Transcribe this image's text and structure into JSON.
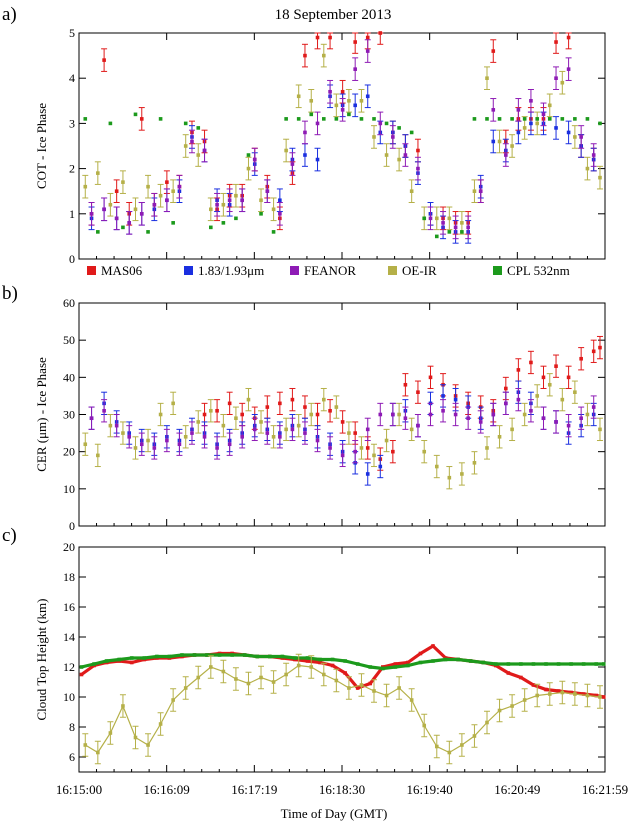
{
  "figure": {
    "title": "18 September 2013",
    "xlabel": "Time of Day (GMT)",
    "xticks": [
      "16:15:00",
      "16:16:09",
      "16:17:19",
      "16:18:30",
      "16:19:40",
      "16:20:49",
      "16:21:59"
    ],
    "legend": [
      {
        "name": "MAS06",
        "color": "#e01a1a"
      },
      {
        "name": "1.83/1.93μm",
        "color": "#1a2fe0"
      },
      {
        "name": "FEANOR",
        "color": "#8e1bb5"
      },
      {
        "name": "OE-IR",
        "color": "#b5b048"
      },
      {
        "name": "CPL 532nm",
        "color": "#1c9a1c"
      }
    ]
  },
  "chart_data": [
    {
      "panel_label": "a)",
      "type": "scatter",
      "ylabel": "COT - Ice Phase",
      "ylim": [
        0,
        5
      ],
      "yticks": [
        0,
        1,
        2,
        3,
        4,
        5
      ],
      "xlim": [
        0,
        419
      ],
      "series": [
        {
          "name": "MAS06",
          "x": [
            10,
            20,
            30,
            40,
            50,
            60,
            70,
            80,
            90,
            100,
            110,
            120,
            130,
            140,
            150,
            160,
            170,
            180,
            190,
            200,
            210,
            220,
            230,
            240,
            250,
            260,
            270,
            280,
            290,
            300,
            310,
            320,
            330,
            340,
            350,
            360,
            370,
            380,
            390,
            400,
            410
          ],
          "values": [
            1.0,
            4.4,
            1.5,
            1.0,
            3.1,
            1.2,
            1.7,
            1.6,
            2.8,
            2.6,
            1.1,
            1.4,
            1.4,
            2.2,
            1.6,
            0.9,
            1.9,
            4.5,
            4.9,
            4.9,
            3.7,
            4.8,
            4.9,
            5.0,
            2.8,
            2.5,
            2.4,
            1.0,
            0.9,
            0.8,
            0.8,
            1.5,
            4.6,
            2.6,
            3.1,
            3.1,
            3.1,
            4.8,
            4.9,
            2.5,
            2.2
          ]
        },
        {
          "name": "1.83/1.93μm",
          "x": [
            10,
            20,
            30,
            40,
            50,
            60,
            70,
            80,
            90,
            100,
            110,
            120,
            130,
            140,
            150,
            160,
            170,
            180,
            190,
            200,
            210,
            220,
            230,
            240,
            250,
            260,
            270,
            280,
            290,
            300,
            310,
            320,
            330,
            340,
            350,
            360,
            370,
            380,
            390,
            400,
            410
          ],
          "values": [
            0.9,
            1.1,
            0.9,
            0.8,
            1.0,
            1.1,
            1.3,
            1.5,
            2.7,
            2.4,
            1.3,
            1.2,
            1.3,
            2.1,
            1.5,
            1.3,
            2.2,
            2.3,
            2.2,
            3.6,
            3.4,
            3.4,
            3.6,
            2.8,
            2.8,
            2.5,
            1.9,
            1.0,
            0.7,
            0.6,
            0.6,
            1.6,
            2.6,
            2.4,
            2.8,
            3.0,
            3.0,
            2.9,
            2.8,
            2.5,
            2.2
          ]
        },
        {
          "name": "FEANOR",
          "x": [
            10,
            20,
            30,
            40,
            50,
            60,
            70,
            80,
            90,
            100,
            110,
            120,
            130,
            140,
            150,
            160,
            170,
            180,
            190,
            200,
            210,
            220,
            230,
            240,
            250,
            260,
            270,
            280,
            290,
            300,
            310,
            320,
            330,
            340,
            350,
            360,
            370,
            380,
            390,
            400,
            410
          ],
          "values": [
            1.0,
            1.1,
            0.9,
            0.8,
            1.0,
            1.2,
            1.3,
            1.6,
            2.6,
            2.4,
            1.2,
            1.3,
            1.3,
            2.2,
            1.5,
            1.0,
            2.1,
            2.8,
            3.0,
            3.7,
            3.3,
            4.2,
            4.6,
            3.0,
            2.7,
            2.3,
            2.0,
            0.9,
            0.8,
            0.7,
            0.7,
            1.5,
            3.3,
            2.3,
            3.3,
            3.5,
            3.2,
            4.0,
            4.2,
            2.7,
            2.3
          ]
        },
        {
          "name": "OE-IR",
          "x": [
            5,
            15,
            25,
            35,
            45,
            55,
            65,
            75,
            85,
            95,
            105,
            115,
            125,
            135,
            145,
            155,
            165,
            175,
            185,
            195,
            205,
            215,
            225,
            235,
            245,
            255,
            265,
            275,
            285,
            295,
            305,
            315,
            325,
            335,
            345,
            355,
            365,
            375,
            385,
            395,
            405,
            415
          ],
          "values": [
            1.6,
            1.9,
            1.2,
            1.7,
            1.1,
            1.6,
            1.4,
            1.5,
            2.5,
            2.3,
            1.1,
            1.2,
            1.4,
            2.0,
            1.3,
            1.1,
            2.4,
            3.6,
            3.5,
            4.5,
            3.4,
            3.5,
            3.5,
            2.7,
            2.3,
            2.2,
            1.5,
            0.9,
            0.9,
            0.9,
            0.8,
            1.5,
            4.0,
            2.6,
            2.5,
            2.9,
            3.0,
            3.4,
            3.9,
            2.7,
            2.0,
            1.8
          ]
        },
        {
          "name": "CPL 532nm",
          "x": [
            5,
            15,
            25,
            35,
            45,
            55,
            65,
            75,
            85,
            95,
            105,
            115,
            125,
            135,
            145,
            155,
            165,
            175,
            185,
            195,
            205,
            215,
            225,
            235,
            245,
            255,
            265,
            275,
            285,
            295,
            305,
            315,
            325,
            335,
            345,
            355,
            365,
            375,
            385,
            395,
            405,
            415
          ],
          "values": [
            3.1,
            0.6,
            3.0,
            0.7,
            3.2,
            0.6,
            3.1,
            0.8,
            3.0,
            2.9,
            0.7,
            0.8,
            0.9,
            2.3,
            1.0,
            0.6,
            3.1,
            3.1,
            3.2,
            3.1,
            3.1,
            3.2,
            3.1,
            3.1,
            3.0,
            2.9,
            2.8,
            0.9,
            0.5,
            0.6,
            0.6,
            3.1,
            3.1,
            3.1,
            3.1,
            3.1,
            3.1,
            3.1,
            3.1,
            3.1,
            3.1,
            3.0
          ]
        }
      ]
    },
    {
      "panel_label": "b)",
      "type": "scatter",
      "ylabel": "CER (μm) - Ice Phase",
      "ylim": [
        0,
        60
      ],
      "yticks": [
        0,
        10,
        20,
        30,
        40,
        50,
        60
      ],
      "xlim": [
        0,
        419
      ],
      "series": [
        {
          "name": "MAS06",
          "x": [
            100,
            110,
            120,
            130,
            140,
            150,
            160,
            170,
            180,
            190,
            200,
            210,
            220,
            230,
            240,
            250,
            260,
            270,
            280,
            290,
            300,
            310,
            320,
            330,
            340,
            350,
            360,
            370,
            380,
            390,
            400,
            410,
            415
          ],
          "values": [
            30,
            31,
            33,
            30,
            29,
            32,
            33,
            34,
            32,
            30,
            31,
            28,
            25,
            21,
            18,
            20,
            38,
            36,
            40,
            38,
            35,
            33,
            32,
            31,
            37,
            42,
            44,
            40,
            43,
            40,
            45,
            47,
            48
          ]
        },
        {
          "name": "1.83/1.93μm",
          "x": [
            10,
            20,
            30,
            40,
            50,
            60,
            70,
            80,
            90,
            100,
            110,
            120,
            130,
            140,
            150,
            160,
            170,
            180,
            190,
            200,
            210,
            220,
            230,
            240,
            250,
            260,
            270,
            280,
            290,
            300,
            310,
            320,
            330,
            340,
            350,
            360,
            370,
            380,
            390,
            400,
            410
          ],
          "values": [
            29,
            33,
            28,
            25,
            23,
            22,
            24,
            23,
            26,
            25,
            22,
            23,
            25,
            27,
            26,
            25,
            27,
            26,
            24,
            22,
            20,
            17,
            14,
            16,
            30,
            31,
            27,
            33,
            35,
            34,
            32,
            29,
            30,
            33,
            36,
            33,
            29,
            28,
            25,
            27,
            30
          ]
        },
        {
          "name": "FEANOR",
          "x": [
            10,
            20,
            30,
            40,
            50,
            60,
            70,
            80,
            90,
            100,
            110,
            120,
            130,
            140,
            150,
            160,
            170,
            180,
            190,
            200,
            210,
            220,
            230,
            240,
            250,
            260,
            270,
            280,
            290,
            300,
            310,
            320,
            330,
            340,
            350,
            360,
            370,
            380,
            390,
            400,
            410
          ],
          "values": [
            29,
            31,
            27,
            24,
            22,
            21,
            23,
            22,
            25,
            24,
            21,
            22,
            24,
            26,
            25,
            24,
            26,
            25,
            23,
            21,
            19,
            20,
            26,
            30,
            30,
            29,
            27,
            30,
            31,
            30,
            29,
            28,
            30,
            33,
            34,
            31,
            29,
            28,
            27,
            29,
            32
          ]
        },
        {
          "name": "OE-IR",
          "x": [
            5,
            15,
            25,
            35,
            45,
            55,
            65,
            75,
            85,
            95,
            105,
            115,
            125,
            135,
            145,
            155,
            165,
            175,
            185,
            195,
            205,
            215,
            225,
            235,
            245,
            255,
            265,
            275,
            285,
            295,
            305,
            315,
            325,
            335,
            345,
            355,
            365,
            375,
            385,
            395,
            405,
            415
          ],
          "values": [
            22,
            19,
            27,
            25,
            21,
            23,
            30,
            33,
            24,
            28,
            31,
            27,
            29,
            34,
            28,
            24,
            26,
            27,
            30,
            34,
            32,
            25,
            21,
            19,
            23,
            30,
            26,
            20,
            16,
            13,
            14,
            17,
            21,
            24,
            26,
            30,
            35,
            38,
            34,
            36,
            30,
            26
          ]
        }
      ]
    },
    {
      "panel_label": "c)",
      "type": "line",
      "ylabel": "Cloud Top Height (km)",
      "ylim": [
        5,
        20
      ],
      "yticks": [
        6,
        8,
        10,
        12,
        14,
        16,
        18,
        20
      ],
      "xlim": [
        0,
        419
      ],
      "series": [
        {
          "name": "MAS06",
          "x": [
            2,
            12,
            22,
            32,
            42,
            52,
            62,
            72,
            82,
            92,
            102,
            112,
            122,
            132,
            142,
            152,
            162,
            172,
            182,
            192,
            202,
            212,
            222,
            232,
            242,
            252,
            262,
            272,
            282,
            292,
            302,
            312,
            322,
            332,
            342,
            352,
            362,
            372,
            382,
            392,
            402,
            412,
            418
          ],
          "values": [
            11.5,
            12.1,
            12.3,
            12.4,
            12.3,
            12.5,
            12.6,
            12.6,
            12.7,
            12.8,
            12.8,
            12.9,
            12.9,
            12.8,
            12.7,
            12.7,
            12.6,
            12.5,
            12.4,
            12.3,
            12.1,
            11.6,
            10.6,
            10.9,
            12.0,
            12.2,
            12.3,
            12.9,
            13.4,
            12.6,
            12.5,
            12.4,
            12.3,
            12.1,
            11.6,
            11.3,
            10.8,
            10.5,
            10.4,
            10.3,
            10.2,
            10.1,
            10.0
          ]
        },
        {
          "name": "CPL 532nm",
          "x": [
            2,
            12,
            22,
            32,
            42,
            52,
            62,
            72,
            82,
            92,
            102,
            112,
            122,
            132,
            142,
            152,
            162,
            172,
            182,
            192,
            202,
            212,
            222,
            232,
            242,
            252,
            262,
            272,
            282,
            292,
            302,
            312,
            322,
            332,
            342,
            352,
            362,
            372,
            382,
            392,
            402,
            412,
            418
          ],
          "values": [
            12.0,
            12.2,
            12.4,
            12.5,
            12.6,
            12.6,
            12.7,
            12.7,
            12.8,
            12.8,
            12.8,
            12.8,
            12.8,
            12.8,
            12.7,
            12.7,
            12.7,
            12.6,
            12.6,
            12.5,
            12.5,
            12.4,
            12.2,
            12.0,
            11.9,
            12.0,
            12.1,
            12.3,
            12.4,
            12.5,
            12.5,
            12.4,
            12.3,
            12.2,
            12.2,
            12.2,
            12.2,
            12.2,
            12.2,
            12.2,
            12.2,
            12.2,
            12.2
          ]
        },
        {
          "name": "OE-IR",
          "x": [
            5,
            15,
            25,
            35,
            45,
            55,
            65,
            75,
            85,
            95,
            105,
            115,
            125,
            135,
            145,
            155,
            165,
            175,
            185,
            195,
            205,
            215,
            225,
            235,
            245,
            255,
            265,
            275,
            285,
            295,
            305,
            315,
            325,
            335,
            345,
            355,
            365,
            375,
            385,
            395,
            405,
            415
          ],
          "values": [
            6.8,
            6.3,
            7.6,
            9.4,
            7.3,
            6.8,
            8.2,
            9.8,
            10.6,
            11.3,
            12.0,
            11.7,
            11.2,
            10.9,
            11.3,
            11.0,
            11.5,
            12.1,
            12.0,
            11.5,
            11.1,
            10.6,
            10.8,
            10.4,
            10.1,
            10.6,
            9.8,
            8.1,
            6.7,
            6.3,
            6.8,
            7.4,
            8.3,
            9.1,
            9.4,
            9.8,
            10.1,
            10.2,
            10.3,
            10.2,
            10.1,
            10.0
          ]
        }
      ]
    }
  ]
}
